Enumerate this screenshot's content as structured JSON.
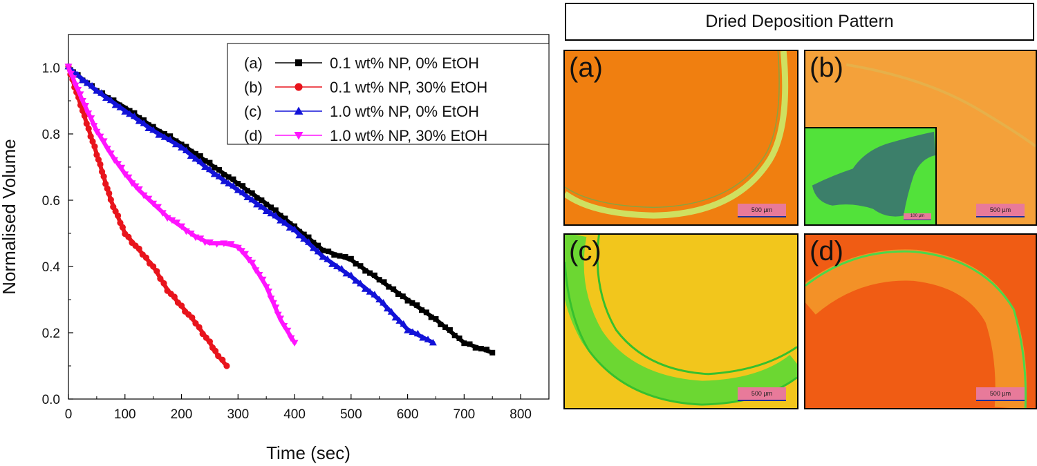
{
  "chart_data": {
    "type": "line",
    "xlabel": "Time (sec)",
    "ylabel": "Normalised Volume",
    "xlim": [
      0,
      850
    ],
    "ylim": [
      0,
      1.1
    ],
    "xticks": [
      0,
      100,
      200,
      300,
      400,
      500,
      600,
      700,
      800
    ],
    "yticks": [
      0.0,
      0.2,
      0.4,
      0.6,
      0.8,
      1.0
    ],
    "legend_position": "top-right",
    "series": [
      {
        "label": "(a)",
        "name": "0.1 wt% NP, 0% EtOH",
        "color": "#000000",
        "marker": "square",
        "x": [
          0,
          50,
          100,
          150,
          200,
          250,
          300,
          350,
          400,
          450,
          500,
          550,
          600,
          650,
          700,
          750
        ],
        "y": [
          1.0,
          0.93,
          0.88,
          0.82,
          0.77,
          0.71,
          0.65,
          0.59,
          0.52,
          0.45,
          0.42,
          0.36,
          0.3,
          0.24,
          0.17,
          0.14
        ]
      },
      {
        "label": "(b)",
        "name": "0.1 wt% NP, 30% EtOH",
        "color": "#e8141c",
        "marker": "circle",
        "x": [
          0,
          25,
          50,
          75,
          100,
          125,
          150,
          175,
          200,
          225,
          250,
          265,
          280
        ],
        "y": [
          1.0,
          0.87,
          0.74,
          0.6,
          0.5,
          0.45,
          0.4,
          0.33,
          0.28,
          0.23,
          0.17,
          0.13,
          0.1
        ]
      },
      {
        "label": "(c)",
        "name": "1.0 wt% NP, 0% EtOH",
        "color": "#1212d8",
        "marker": "triangle-up",
        "x": [
          0,
          50,
          100,
          150,
          200,
          250,
          300,
          350,
          400,
          450,
          500,
          550,
          600,
          645
        ],
        "y": [
          1.0,
          0.93,
          0.87,
          0.81,
          0.76,
          0.69,
          0.63,
          0.57,
          0.51,
          0.43,
          0.37,
          0.3,
          0.21,
          0.17
        ]
      },
      {
        "label": "(d)",
        "name": "1.0 wt% NP, 30% EtOH",
        "color": "#ff14ff",
        "marker": "triangle-down",
        "x": [
          0,
          25,
          50,
          75,
          100,
          125,
          150,
          175,
          200,
          225,
          250,
          275,
          300,
          325,
          350,
          375,
          400
        ],
        "y": [
          1.0,
          0.9,
          0.81,
          0.74,
          0.68,
          0.63,
          0.59,
          0.55,
          0.52,
          0.49,
          0.47,
          0.47,
          0.46,
          0.41,
          0.34,
          0.24,
          0.17
        ]
      }
    ]
  },
  "images": {
    "title": "Dried Deposition Pattern",
    "panels": [
      {
        "label": "(a)",
        "scale_bar": "500 µm",
        "bg": "#f07f10",
        "ring": "#cfe060"
      },
      {
        "label": "(b)",
        "scale_bar": "500 µm",
        "bg": "#f4a13a",
        "ring": "#e6b04a",
        "inset_scale_bar": "100 µm",
        "inset_bg": "#52e23a",
        "inset_cluster": "#3c7f6a"
      },
      {
        "label": "(c)",
        "scale_bar": "500 µm",
        "bg": "#f2c61c",
        "ring": "#3fdc3a"
      },
      {
        "label": "(d)",
        "scale_bar": "500 µm",
        "bg": "#f05c14",
        "ring": "#f39a2a"
      }
    ]
  }
}
